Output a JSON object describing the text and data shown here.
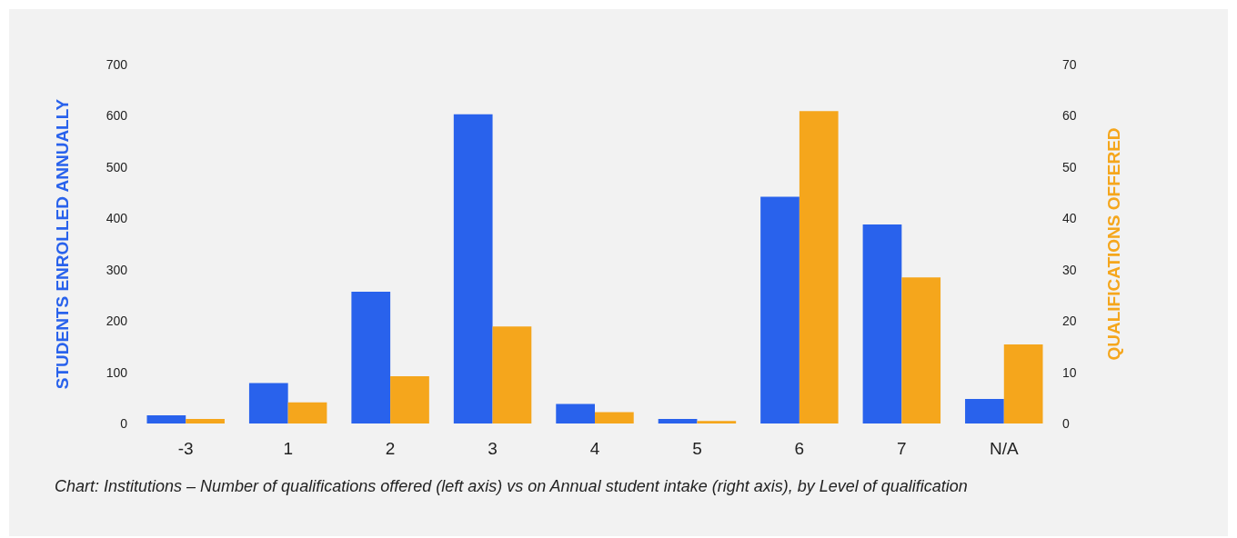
{
  "chart_data": {
    "type": "bar",
    "ylabel": "STUDENTS ENROLLED ANNUALLY",
    "y2label": "QUALIFICATIONS OFFERED",
    "categories": [
      "-3",
      "1",
      "2",
      "3",
      "4",
      "5",
      "6",
      "7",
      "N/A"
    ],
    "series": [
      {
        "color": "#2962ec",
        "values": [
          16,
          79,
          257,
          603,
          38,
          9,
          442,
          388,
          48
        ]
      },
      {
        "color": "#f5a61c",
        "axis": "y2",
        "values": [
          0.9,
          4.1,
          9.2,
          18.9,
          2.2,
          0.5,
          60.9,
          28.5,
          15.4
        ]
      }
    ],
    "ylim": [
      0,
      700
    ],
    "yticks": [
      0,
      100,
      200,
      300,
      400,
      500,
      600,
      700
    ],
    "y2lim": [
      0,
      70
    ],
    "y2ticks": [
      0,
      10,
      20,
      30,
      40,
      50,
      60,
      70
    ],
    "grid": false,
    "annotations": [
      "Chart: Institutions – Number of qualifications offered (left axis) vs on Annual student intake (right axis), by Level of qualification"
    ]
  }
}
